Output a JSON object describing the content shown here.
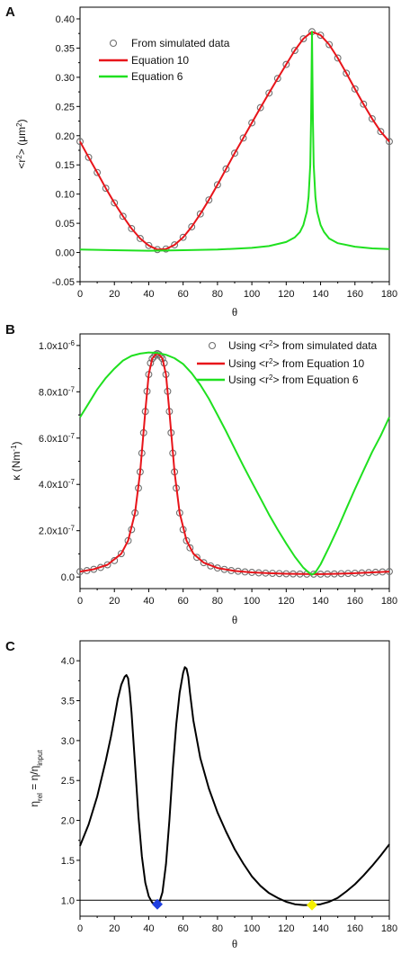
{
  "chart_data": [
    {
      "panel": "A",
      "type": "scatter",
      "xlabel": "θ",
      "ylabel_parts": [
        "<r",
        "2",
        "> (μm",
        "2",
        ")"
      ],
      "xlim": [
        0,
        180
      ],
      "ylim": [
        -0.05,
        0.42
      ],
      "xticks": [
        0,
        20,
        40,
        60,
        80,
        100,
        120,
        140,
        160,
        180
      ],
      "yticks": [
        -0.05,
        0.0,
        0.05,
        0.1,
        0.15,
        0.2,
        0.25,
        0.3,
        0.35,
        0.4
      ],
      "ytick_labels": [
        "-0.05",
        "0.00",
        "0.05",
        "0.10",
        "0.15",
        "0.20",
        "0.25",
        "0.30",
        "0.35",
        "0.40"
      ],
      "legend": [
        "From simulated data",
        "Equation 10",
        "Equation 6"
      ],
      "series": [
        {
          "name": "From simulated data",
          "style": "open-circle",
          "color": "#707070",
          "x": [
            0,
            5,
            10,
            15,
            20,
            25,
            30,
            35,
            40,
            45,
            50,
            55,
            60,
            65,
            70,
            75,
            80,
            85,
            90,
            95,
            100,
            105,
            110,
            115,
            120,
            125,
            130,
            135,
            140,
            145,
            150,
            155,
            160,
            165,
            170,
            175,
            180
          ],
          "y": [
            0.19,
            0.163,
            0.137,
            0.11,
            0.085,
            0.062,
            0.041,
            0.024,
            0.012,
            0.005,
            0.006,
            0.013,
            0.026,
            0.044,
            0.066,
            0.09,
            0.116,
            0.143,
            0.17,
            0.196,
            0.222,
            0.248,
            0.273,
            0.298,
            0.322,
            0.346,
            0.366,
            0.378,
            0.372,
            0.356,
            0.333,
            0.307,
            0.28,
            0.254,
            0.229,
            0.207,
            0.19
          ]
        },
        {
          "name": "Equation 10",
          "style": "line",
          "color": "#e8141a",
          "x": [
            0,
            5,
            10,
            15,
            20,
            25,
            30,
            35,
            40,
            45,
            50,
            55,
            60,
            65,
            70,
            75,
            80,
            85,
            90,
            95,
            100,
            105,
            110,
            115,
            120,
            125,
            130,
            135,
            140,
            145,
            150,
            155,
            160,
            165,
            170,
            175,
            180
          ],
          "y": [
            0.19,
            0.163,
            0.137,
            0.11,
            0.085,
            0.062,
            0.041,
            0.024,
            0.012,
            0.005,
            0.006,
            0.013,
            0.026,
            0.044,
            0.066,
            0.09,
            0.116,
            0.143,
            0.17,
            0.196,
            0.222,
            0.248,
            0.273,
            0.298,
            0.322,
            0.346,
            0.366,
            0.378,
            0.372,
            0.356,
            0.333,
            0.307,
            0.28,
            0.254,
            0.229,
            0.207,
            0.19
          ]
        },
        {
          "name": "Equation 6",
          "style": "line",
          "color": "#1fe01f",
          "x": [
            0,
            20,
            40,
            60,
            80,
            100,
            110,
            120,
            125,
            128,
            130,
            132,
            133,
            134,
            134.5,
            135,
            135.5,
            136,
            137,
            138,
            140,
            142,
            145,
            150,
            160,
            170,
            180
          ],
          "y": [
            0.005,
            0.004,
            0.003,
            0.004,
            0.005,
            0.008,
            0.011,
            0.018,
            0.026,
            0.035,
            0.047,
            0.07,
            0.095,
            0.15,
            0.23,
            0.378,
            0.23,
            0.15,
            0.095,
            0.07,
            0.047,
            0.035,
            0.024,
            0.016,
            0.01,
            0.007,
            0.006
          ]
        }
      ]
    },
    {
      "panel": "B",
      "type": "scatter",
      "xlabel": "θ",
      "ylabel_parts": [
        "κ (Nm",
        "-1",
        ")"
      ],
      "xlim": [
        0,
        180
      ],
      "ylim": [
        -5e-08,
        1.05e-06
      ],
      "xticks": [
        0,
        20,
        40,
        60,
        80,
        100,
        120,
        140,
        160,
        180
      ],
      "yticks": [
        0.0,
        2e-07,
        4e-07,
        6e-07,
        8e-07,
        1e-06
      ],
      "ytick_labels": [
        "0.0",
        "2.0x10",
        "4.0x10",
        "6.0x10",
        "8.0x10",
        "1.0x10"
      ],
      "ytick_exponents": [
        "",
        "-7",
        "-7",
        "-7",
        "-7",
        "-6"
      ],
      "legend_parts": [
        [
          "Using <r",
          "2",
          "> from simulated data"
        ],
        [
          "Using <r",
          "2",
          "> from Equation 10"
        ],
        [
          "Using <r",
          "2",
          "> from Equation 6"
        ]
      ],
      "series": [
        {
          "name": "Using <r2> from simulated data",
          "style": "open-circle",
          "color": "#707070",
          "x": [
            0,
            4,
            8,
            12,
            16,
            20,
            24,
            28,
            30,
            32,
            34,
            35,
            36,
            37,
            38,
            39,
            40,
            41,
            42,
            43,
            44,
            45,
            46,
            47,
            48,
            49,
            50,
            51,
            52,
            53,
            54,
            55,
            56,
            58,
            60,
            62,
            64,
            68,
            72,
            76,
            80,
            84,
            88,
            92,
            96,
            100,
            104,
            108,
            112,
            116,
            120,
            124,
            128,
            132,
            136,
            140,
            144,
            148,
            152,
            156,
            160,
            164,
            168,
            172,
            176,
            180
          ],
          "y": [
            2.36e-08,
            2.78e-08,
            3.34e-08,
            4.13e-08,
            5.29e-08,
            7.1e-08,
            1.01e-07,
            1.57e-07,
            2.05e-07,
            2.77e-07,
            3.84e-07,
            4.54e-07,
            5.35e-07,
            6.23e-07,
            7.15e-07,
            8.02e-07,
            8.75e-07,
            9.24e-07,
            9.43e-07,
            9.51e-07,
            9.61e-07,
            9.65e-07,
            9.61e-07,
            9.51e-07,
            9.43e-07,
            9.24e-07,
            8.75e-07,
            8.02e-07,
            7.15e-07,
            6.23e-07,
            5.35e-07,
            4.54e-07,
            3.84e-07,
            2.77e-07,
            2.05e-07,
            1.57e-07,
            1.26e-07,
            8.5e-08,
            6.2e-08,
            4.8e-08,
            3.9e-08,
            3.3e-08,
            2.8e-08,
            2.5e-08,
            2.2e-08,
            2e-08,
            1.8e-08,
            1.7e-08,
            1.6e-08,
            1.5e-08,
            1.4e-08,
            1.35e-08,
            1.3e-08,
            1.25e-08,
            1.25e-08,
            1.25e-08,
            1.3e-08,
            1.35e-08,
            1.45e-08,
            1.55e-08,
            1.65e-08,
            1.75e-08,
            1.9e-08,
            2.05e-08,
            2.2e-08,
            2.36e-08
          ]
        },
        {
          "name": "Using <r2> from Equation 10",
          "style": "line",
          "color": "#e8141a",
          "x": [
            0,
            8,
            16,
            24,
            28,
            32,
            35,
            38,
            40,
            42,
            44,
            45,
            46,
            48,
            50,
            52,
            55,
            58,
            62,
            66,
            72,
            80,
            90,
            100,
            110,
            120,
            130,
            135,
            140,
            150,
            160,
            170,
            180
          ],
          "y": [
            2.36e-08,
            3.34e-08,
            5.29e-08,
            1.01e-07,
            1.57e-07,
            2.77e-07,
            4.54e-07,
            7.15e-07,
            8.75e-07,
            9.43e-07,
            9.61e-07,
            9.65e-07,
            9.61e-07,
            9.43e-07,
            8.75e-07,
            7.15e-07,
            4.54e-07,
            2.77e-07,
            1.57e-07,
            1.01e-07,
            6.2e-08,
            3.9e-08,
            2.6e-08,
            2e-08,
            1.65e-08,
            1.4e-08,
            1.3e-08,
            1.25e-08,
            1.25e-08,
            1.4e-08,
            1.65e-08,
            2e-08,
            2.36e-08
          ]
        },
        {
          "name": "Using <r2> from Equation 6",
          "style": "line",
          "color": "#1fe01f",
          "x": [
            0,
            5,
            10,
            15,
            20,
            25,
            30,
            35,
            40,
            45,
            50,
            55,
            60,
            65,
            70,
            75,
            80,
            85,
            90,
            95,
            100,
            105,
            110,
            115,
            120,
            125,
            130,
            133,
            135,
            137,
            140,
            145,
            150,
            155,
            160,
            165,
            170,
            175,
            180
          ],
          "y": [
            6.9e-07,
            7.5e-07,
            8.1e-07,
            8.6e-07,
            9e-07,
            9.35e-07,
            9.55e-07,
            9.65e-07,
            9.7e-07,
            9.68e-07,
            9.6e-07,
            9.45e-07,
            9.2e-07,
            8.8e-07,
            8.3e-07,
            7.7e-07,
            7e-07,
            6.3e-07,
            5.55e-07,
            4.8e-07,
            4.1e-07,
            3.4e-07,
            2.7e-07,
            2.05e-07,
            1.45e-07,
            8.8e-08,
            4e-08,
            2e-08,
            1e-08,
            2e-08,
            5.5e-08,
            1.3e-07,
            2.1e-07,
            2.95e-07,
            3.8e-07,
            4.6e-07,
            5.4e-07,
            6.1e-07,
            6.9e-07
          ]
        }
      ]
    },
    {
      "panel": "C",
      "type": "line",
      "xlabel": "θ",
      "ylabel_parts": [
        "η",
        "rel",
        " = η/η",
        "input",
        ""
      ],
      "xlim": [
        0,
        180
      ],
      "ylim": [
        0.8,
        4.25
      ],
      "xticks": [
        0,
        20,
        40,
        60,
        80,
        100,
        120,
        140,
        160,
        180
      ],
      "yticks": [
        1.0,
        1.5,
        2.0,
        2.5,
        3.0,
        3.5,
        4.0
      ],
      "ytick_labels": [
        "1.0",
        "1.5",
        "2.0",
        "2.5",
        "3.0",
        "3.5",
        "4.0"
      ],
      "reference_line": 1.0,
      "series": [
        {
          "style": "line",
          "color": "#000000",
          "x": [
            0,
            5,
            10,
            15,
            18,
            20,
            22,
            24,
            26,
            27,
            28,
            29,
            30,
            32,
            34,
            36,
            38,
            40,
            42,
            44,
            45,
            46,
            48,
            50,
            52,
            54,
            56,
            58,
            60,
            61,
            62,
            63,
            64,
            66,
            70,
            75,
            80,
            85,
            90,
            95,
            100,
            105,
            110,
            115,
            120,
            125,
            130,
            135,
            140,
            145,
            150,
            155,
            160,
            165,
            170,
            175,
            180
          ],
          "y": [
            1.68,
            1.95,
            2.3,
            2.75,
            3.05,
            3.28,
            3.52,
            3.7,
            3.8,
            3.82,
            3.78,
            3.6,
            3.35,
            2.7,
            2.05,
            1.55,
            1.22,
            1.05,
            0.97,
            0.95,
            0.95,
            0.96,
            1.1,
            1.45,
            2.0,
            2.65,
            3.2,
            3.6,
            3.85,
            3.92,
            3.9,
            3.8,
            3.6,
            3.25,
            2.78,
            2.4,
            2.1,
            1.86,
            1.64,
            1.46,
            1.3,
            1.18,
            1.09,
            1.03,
            0.98,
            0.95,
            0.94,
            0.94,
            0.95,
            0.98,
            1.03,
            1.11,
            1.2,
            1.31,
            1.43,
            1.56,
            1.7
          ]
        },
        {
          "style": "marker",
          "marker": "diamond",
          "color": "#1f3fe0",
          "x": [
            45
          ],
          "y": [
            0.95
          ]
        },
        {
          "style": "marker",
          "marker": "diamond",
          "color": "#f5f000",
          "x": [
            135
          ],
          "y": [
            0.94
          ]
        }
      ]
    }
  ]
}
